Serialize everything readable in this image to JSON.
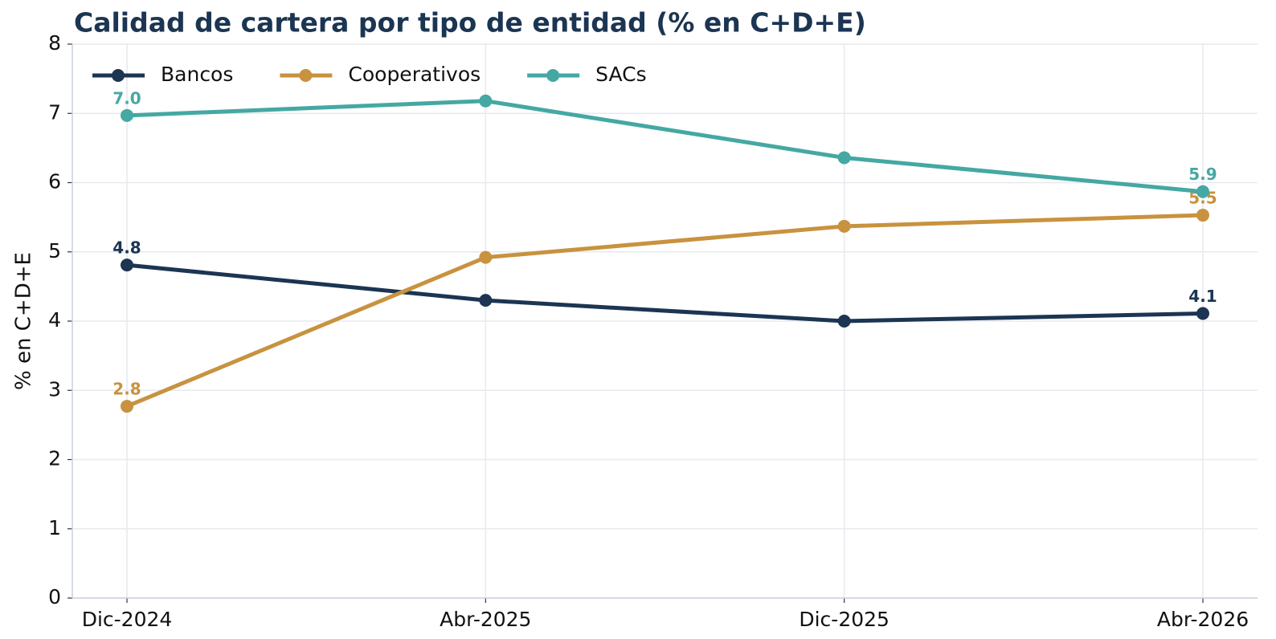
{
  "chart_data": {
    "type": "line",
    "title": "Calidad de cartera por tipo de entidad (% en C+D+E)",
    "ylabel": "% en C+D+E",
    "categories": [
      "Dic-2024",
      "Abr-2025",
      "Dic-2025",
      "Abr-2026"
    ],
    "series": [
      {
        "name": "Bancos",
        "color": "#1b3552",
        "values": [
          4.81,
          4.3,
          4.0,
          4.11
        ],
        "value_labels": [
          "4.8",
          null,
          null,
          "4.1"
        ]
      },
      {
        "name": "Cooperativos",
        "color": "#c8923f",
        "values": [
          2.77,
          4.92,
          5.37,
          5.53
        ],
        "value_labels": [
          "2.8",
          null,
          null,
          "5.5"
        ]
      },
      {
        "name": "SACs",
        "color": "#45a8a2",
        "values": [
          6.97,
          7.18,
          6.36,
          5.87
        ],
        "value_labels": [
          "7.0",
          null,
          null,
          "5.9"
        ]
      }
    ],
    "ylim": [
      0,
      8
    ],
    "yticks": [
      0,
      1,
      2,
      3,
      4,
      5,
      6,
      7,
      8
    ],
    "grid": true,
    "legend": "upper left"
  }
}
